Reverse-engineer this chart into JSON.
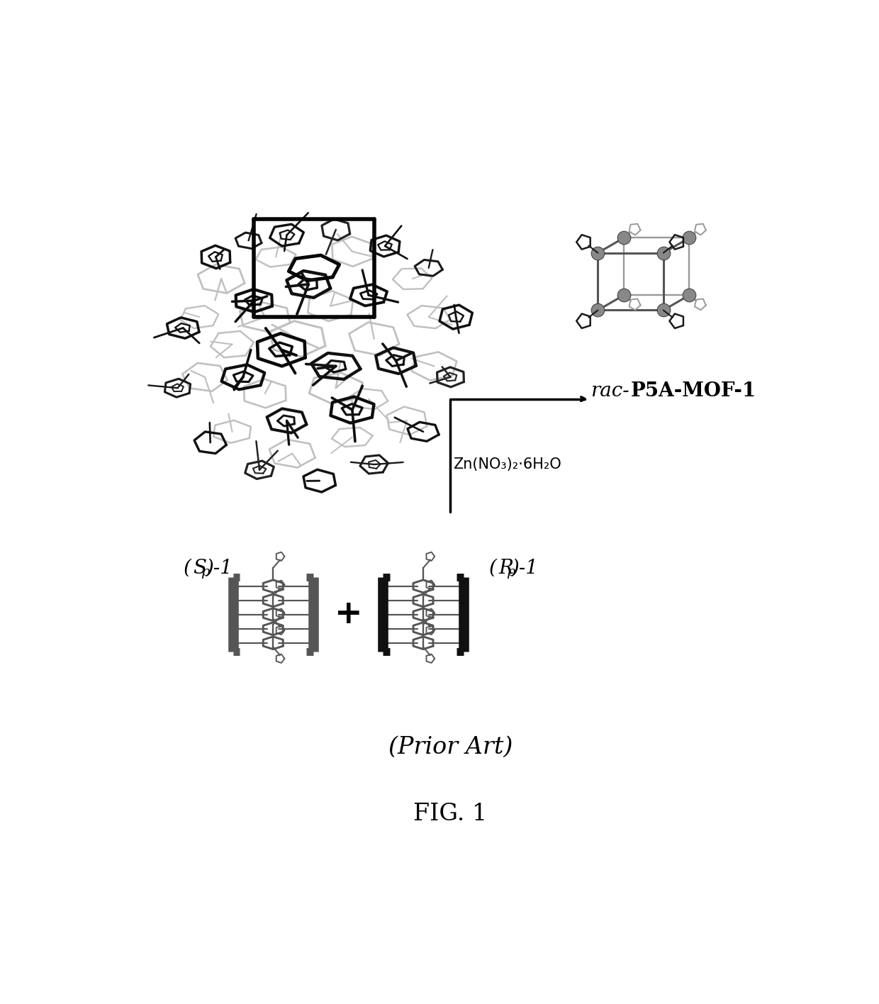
{
  "background_color": "#ffffff",
  "fig_width": 12.4,
  "fig_height": 14.16,
  "dpi": 100,
  "label_sp1_italic": "(S",
  "label_sp1_sub": "p",
  "label_sp1_rest": ")-1",
  "label_rp1_italic": "(R",
  "label_rp1_sub": "p",
  "label_rp1_rest": ")-1",
  "label_mof_italic": "rac-",
  "label_mof_bold": "P5A-MOF-1",
  "label_reagent": "Zn(NO₃)₂·6H₂O",
  "label_prior_art": "(Prior Art)",
  "label_fig": "FIG. 1",
  "plus_symbol": "+",
  "arrow_color": "#000000",
  "text_color": "#000000",
  "gray_dark": "#222222",
  "gray_mid": "#777777",
  "gray_light": "#bbbbbb",
  "font_size_labels": 20,
  "font_size_mof": 20,
  "font_size_reagent": 15,
  "font_size_footer": 24,
  "font_size_fig": 24
}
